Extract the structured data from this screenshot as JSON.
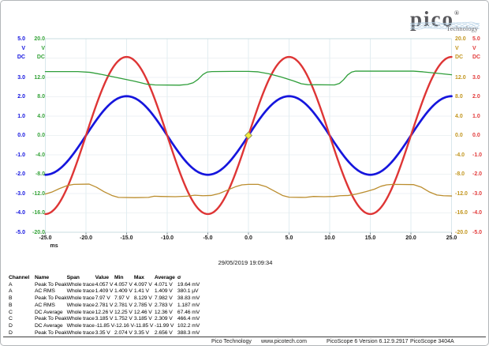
{
  "logo": {
    "brand": "pico",
    "registered": "®",
    "sub": "Technology"
  },
  "timestamp": "29/05/2019 19:09:34",
  "chart_data": {
    "type": "line",
    "title": "",
    "x_axis": {
      "unit_label": "ms",
      "min": -25,
      "max": 25,
      "ticks": [
        -25,
        -20,
        -15,
        -10,
        -5,
        0,
        5,
        10,
        15,
        20,
        25
      ]
    },
    "y_axes": [
      {
        "id": "A",
        "side": "left",
        "slot": 0,
        "color": "#1313e0",
        "unit": "V",
        "coupling": "DC",
        "max": 5,
        "ticks": [
          5,
          3,
          2,
          1,
          0,
          -1,
          -2,
          -3,
          -4,
          -5
        ]
      },
      {
        "id": "C",
        "side": "left",
        "slot": 1,
        "color": "#35a339",
        "unit": "V",
        "coupling": "DC",
        "max": 20,
        "ticks": [
          20,
          12,
          8,
          4,
          0,
          -4,
          -8,
          -12,
          -16,
          -20
        ]
      },
      {
        "id": "D",
        "side": "right",
        "slot": 0,
        "color": "#c2961f",
        "unit": "V",
        "coupling": "DC",
        "max": 20,
        "ticks": [
          20,
          12,
          8,
          4,
          0,
          -4,
          -8,
          -12,
          -16,
          -20
        ]
      },
      {
        "id": "B",
        "side": "right",
        "slot": 1,
        "color": "#e23c3c",
        "unit": "V",
        "coupling": "DC",
        "max": 5,
        "ticks": [
          5,
          3,
          2,
          1,
          0,
          -1,
          -2,
          -3,
          -4,
          -5
        ]
      }
    ],
    "series": [
      {
        "channel": "A",
        "color": "#1616dd",
        "width": 2.7,
        "axis_range": 5,
        "type": "sine",
        "amplitude_v": 2.03,
        "period_ms": 20,
        "phase": "rising zero at t=0"
      },
      {
        "channel": "B",
        "color": "#de3535",
        "width": 2.4,
        "axis_range": 5,
        "type": "sine",
        "amplitude_v": 4.06,
        "period_ms": 20,
        "phase": "rising zero at t=0"
      },
      {
        "channel": "C",
        "color": "#2f9e3a",
        "width": 1.3,
        "axis_range": 20,
        "type": "points",
        "points": [
          [
            -25,
            13.2
          ],
          [
            -21,
            13.2
          ],
          [
            -19.5,
            13.05
          ],
          [
            -18,
            12.6
          ],
          [
            -16,
            11.9
          ],
          [
            -14,
            11.2
          ],
          [
            -12.5,
            10.6
          ],
          [
            -11.5,
            10.45
          ],
          [
            -8.5,
            10.4
          ],
          [
            -7.5,
            10.55
          ],
          [
            -6.8,
            10.9
          ],
          [
            -6.2,
            11.6
          ],
          [
            -5.6,
            12.6
          ],
          [
            -5.1,
            13.1
          ],
          [
            -4.5,
            13.2
          ],
          [
            -2,
            13.25
          ],
          [
            0,
            13.25
          ],
          [
            1.2,
            13.15
          ],
          [
            2.5,
            12.75
          ],
          [
            4,
            12.1
          ],
          [
            5.5,
            11.3
          ],
          [
            6.5,
            10.7
          ],
          [
            7.3,
            10.5
          ],
          [
            10.6,
            10.45
          ],
          [
            11.2,
            10.75
          ],
          [
            11.7,
            11.5
          ],
          [
            12.2,
            12.5
          ],
          [
            12.7,
            13.1
          ],
          [
            13.2,
            13.3
          ],
          [
            16,
            13.3
          ],
          [
            20.3,
            13.3
          ],
          [
            21.5,
            13.15
          ],
          [
            23,
            12.9
          ],
          [
            25,
            12.55
          ]
        ]
      },
      {
        "channel": "D",
        "color": "#bb8d2e",
        "width": 1.3,
        "axis_range": 20,
        "type": "points",
        "points": [
          [
            -25,
            -12.1
          ],
          [
            -24.2,
            -11.7
          ],
          [
            -23.3,
            -11.0
          ],
          [
            -22.3,
            -10.35
          ],
          [
            -21.5,
            -10.1
          ],
          [
            -19.6,
            -10.05
          ],
          [
            -18.7,
            -10.7
          ],
          [
            -17.8,
            -11.6
          ],
          [
            -16.8,
            -12.4
          ],
          [
            -16,
            -12.8
          ],
          [
            -14,
            -12.85
          ],
          [
            -12.3,
            -12.8
          ],
          [
            -11.6,
            -12.55
          ],
          [
            -10.8,
            -12.6
          ],
          [
            -9,
            -12.65
          ],
          [
            -7.6,
            -12.55
          ],
          [
            -6.6,
            -12.35
          ],
          [
            -5.6,
            -12.45
          ],
          [
            -4.6,
            -12.4
          ],
          [
            -3.6,
            -12.0
          ],
          [
            -2.6,
            -11.3
          ],
          [
            -1.6,
            -10.6
          ],
          [
            -0.8,
            -10.2
          ],
          [
            0,
            -10.1
          ],
          [
            1.2,
            -10.1
          ],
          [
            2.2,
            -10.6
          ],
          [
            3.2,
            -11.5
          ],
          [
            4.2,
            -12.4
          ],
          [
            5,
            -12.75
          ],
          [
            7,
            -12.8
          ],
          [
            8,
            -12.6
          ],
          [
            9.3,
            -12.65
          ],
          [
            10.5,
            -12.6
          ],
          [
            11.3,
            -12.45
          ],
          [
            12.3,
            -12.4
          ],
          [
            13.3,
            -12.1
          ],
          [
            14.5,
            -11.6
          ],
          [
            15.5,
            -11.1
          ],
          [
            16.3,
            -10.5
          ],
          [
            17,
            -10.2
          ],
          [
            17.8,
            -10.1
          ],
          [
            20.3,
            -10.15
          ],
          [
            21.3,
            -10.7
          ],
          [
            22.3,
            -11.7
          ],
          [
            23.2,
            -12.3
          ],
          [
            24,
            -12.45
          ],
          [
            25,
            -12.5
          ]
        ]
      }
    ],
    "trigger_marker": {
      "t_ms": 0,
      "v": 0,
      "fill": "#f2ea3a",
      "stroke": "#97975e"
    },
    "grid": {
      "vertical_step_ms": 5,
      "horizontal_step_v20": 4
    }
  },
  "measurements": {
    "headers": [
      "Channel",
      "Name",
      "Span",
      "Value",
      "Min",
      "Max",
      "Average",
      "σ"
    ],
    "rows": [
      [
        "A",
        "Peak To Peak",
        "Whole trace",
        "4.057 V",
        "4.057 V",
        "4.097 V",
        "4.071 V",
        "19.64 mV"
      ],
      [
        "A",
        "AC RMS",
        "Whole trace",
        "1.409 V",
        "1.409 V",
        "1.41 V",
        "1.409 V",
        "380.1 µV"
      ],
      [
        "B",
        "Peak To Peak",
        "Whole trace",
        "7.97 V",
        "7.97 V",
        "8.129 V",
        "7.982 V",
        "38.83 mV"
      ],
      [
        "B",
        "AC RMS",
        "Whole trace",
        "2.781 V",
        "2.781 V",
        "2.785 V",
        "2.783 V",
        "1.187 mV"
      ],
      [
        "C",
        "DC Average",
        "Whole trace",
        "12.26 V",
        "12.25 V",
        "12.46 V",
        "12.36 V",
        "67.46 mV"
      ],
      [
        "C",
        "Peak To Peak",
        "Whole trace",
        "3.185 V",
        "1.752 V",
        "3.185 V",
        "2.309 V",
        "466.4 mV"
      ],
      [
        "D",
        "DC Average",
        "Whole trace",
        "-11.85 V",
        "-12.16 V",
        "-11.85 V",
        "-11.99 V",
        "102.2 mV"
      ],
      [
        "D",
        "Peak To Peak",
        "Whole trace",
        "3.35 V",
        "2.074 V",
        "3.35 V",
        "2.656 V",
        "388.3 mV"
      ]
    ]
  },
  "status_bar": {
    "items": [
      "Pico Technology",
      "www.picotech.com",
      "PicoScope 6 Version 6.12.9.2917",
      "PicoScope 3404A"
    ]
  }
}
